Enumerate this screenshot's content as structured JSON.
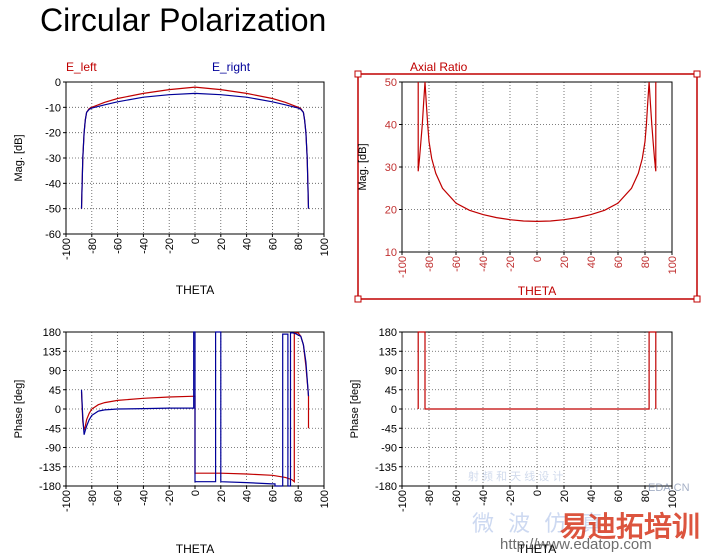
{
  "page": {
    "title": "Circular Polarization"
  },
  "colors": {
    "red": "#c00000",
    "blue": "#000099",
    "grid": "#555555",
    "axis_red": "#c03030"
  },
  "chart_data": [
    {
      "id": "mag-e",
      "type": "line",
      "title": "",
      "xlabel": "THETA",
      "ylabel": "Mag. [dB]",
      "xlim": [
        -100,
        100
      ],
      "ylim": [
        -60,
        0
      ],
      "xticks": [
        -100,
        -80,
        -60,
        -40,
        -20,
        0,
        20,
        40,
        60,
        80,
        100
      ],
      "yticks": [
        0,
        -10,
        -20,
        -30,
        -40,
        -50,
        -60
      ],
      "grid": true,
      "legend": [
        "E_left",
        "E_right"
      ],
      "series": [
        {
          "name": "E_left",
          "color": "#c00000",
          "x": [
            -88,
            -87,
            -86,
            -85,
            -84,
            -82,
            -80,
            -70,
            -60,
            -40,
            -20,
            0,
            20,
            40,
            60,
            70,
            80,
            82,
            84,
            85,
            86,
            87,
            88
          ],
          "y": [
            -50,
            -30,
            -20,
            -15,
            -12,
            -10.5,
            -10,
            -8,
            -6.5,
            -4.5,
            -3,
            -2,
            -3,
            -4.5,
            -6.5,
            -8,
            -10,
            -10.5,
            -12,
            -15,
            -20,
            -30,
            -50
          ]
        },
        {
          "name": "E_right",
          "color": "#000099",
          "x": [
            -88,
            -87,
            -86,
            -85,
            -84,
            -82,
            -80,
            -70,
            -60,
            -40,
            -20,
            0,
            20,
            40,
            60,
            70,
            80,
            82,
            84,
            85,
            86,
            87,
            88
          ],
          "y": [
            -50,
            -30,
            -20,
            -15,
            -12,
            -10.8,
            -10.3,
            -9,
            -7.8,
            -6,
            -5,
            -4.5,
            -5,
            -6,
            -7.8,
            -9,
            -10.3,
            -10.8,
            -12,
            -15,
            -20,
            -30,
            -50
          ]
        }
      ]
    },
    {
      "id": "axial-ratio",
      "type": "line",
      "title": "Axial Ratio",
      "xlabel": "THETA",
      "ylabel": "Mag. [dB]",
      "xlim": [
        -100,
        100
      ],
      "ylim": [
        10,
        50
      ],
      "xticks": [
        -100,
        -80,
        -60,
        -40,
        -20,
        0,
        20,
        40,
        60,
        80,
        100
      ],
      "yticks": [
        50,
        40,
        30,
        20,
        10
      ],
      "grid": true,
      "series": [
        {
          "name": "",
          "color": "#c00000",
          "x": [
            -88,
            -88,
            -87,
            -86,
            -85,
            -84,
            -83,
            -82,
            -81,
            -80,
            -78,
            -75,
            -70,
            -60,
            -50,
            -40,
            -30,
            -20,
            -10,
            0,
            10,
            20,
            30,
            40,
            50,
            60,
            70,
            75,
            78,
            80,
            81,
            82,
            83,
            84,
            85,
            86,
            87,
            88,
            88
          ],
          "y": [
            50,
            29,
            32,
            36,
            40,
            45,
            50,
            45,
            40,
            36,
            32,
            28.5,
            25,
            21.5,
            19.8,
            18.8,
            18.1,
            17.6,
            17.3,
            17.2,
            17.3,
            17.6,
            18.1,
            18.8,
            19.8,
            21.5,
            25,
            28.5,
            32,
            36,
            40,
            45,
            50,
            45,
            40,
            36,
            32,
            29,
            50
          ]
        }
      ]
    },
    {
      "id": "phase-e",
      "type": "line",
      "title": "",
      "xlabel": "THETA",
      "ylabel": "Phase [deg]",
      "xlim": [
        -100,
        100
      ],
      "ylim": [
        -180,
        180
      ],
      "xticks": [
        -100,
        -80,
        -60,
        -40,
        -20,
        0,
        20,
        40,
        60,
        80,
        100
      ],
      "yticks": [
        180,
        135,
        90,
        45,
        0,
        -45,
        -90,
        -135,
        -180
      ],
      "grid": true,
      "series": [
        {
          "name": "E_left",
          "color": "#c00000",
          "x": [
            -88,
            -87,
            -86,
            -85,
            -84,
            -82,
            -80,
            -75,
            -70,
            -60,
            -40,
            -20,
            0,
            0,
            20,
            40,
            60,
            70,
            75,
            77,
            77,
            80,
            82,
            84,
            86,
            88,
            88
          ],
          "y": [
            40,
            -30,
            -50,
            -40,
            -25,
            -10,
            0,
            10,
            15,
            20,
            25,
            28,
            30,
            -150,
            -150,
            -152,
            -155,
            -160,
            -165,
            -170,
            178,
            178,
            170,
            150,
            100,
            30,
            -45
          ]
        },
        {
          "name": "E_right",
          "color": "#000099",
          "x": [
            -88,
            -87,
            -86,
            -85,
            -84,
            -82,
            -80,
            -75,
            -70,
            -60,
            -40,
            -20,
            -1,
            -1,
            0,
            0,
            16,
            16,
            20,
            20,
            40,
            60,
            62,
            62,
            68,
            68,
            72,
            72,
            74,
            74,
            76,
            76,
            78,
            82,
            84,
            86,
            88
          ],
          "y": [
            45,
            -20,
            -60,
            -50,
            -40,
            -25,
            -15,
            -5,
            -2,
            0,
            1,
            2,
            2,
            180,
            180,
            -170,
            -170,
            180,
            180,
            -170,
            -172,
            -175,
            -175,
            -180,
            -180,
            175,
            175,
            -180,
            -180,
            178,
            178,
            178,
            176,
            170,
            150,
            110,
            30
          ]
        }
      ]
    },
    {
      "id": "phase-ar",
      "type": "line",
      "title": "",
      "xlabel": "THETA",
      "ylabel": "Phase [deg]",
      "xlim": [
        -100,
        100
      ],
      "ylim": [
        -180,
        180
      ],
      "xticks": [
        -100,
        -80,
        -60,
        -40,
        -20,
        0,
        20,
        40,
        60,
        80,
        100
      ],
      "yticks": [
        180,
        135,
        90,
        45,
        0,
        -45,
        -90,
        -135,
        -180
      ],
      "grid": true,
      "series": [
        {
          "name": "",
          "color": "#c00000",
          "x": [
            -88,
            -88,
            -83,
            -83,
            83,
            83,
            88,
            88
          ],
          "y": [
            0,
            180,
            180,
            0,
            0,
            180,
            180,
            0
          ]
        }
      ]
    }
  ],
  "watermark": {
    "line1": "易迪拓培训",
    "line2": "微 波 仿 真",
    "url": "http://www.edatop.com",
    "site": "EDA.CN",
    "small": "射 频 和 天 线 设 计"
  }
}
